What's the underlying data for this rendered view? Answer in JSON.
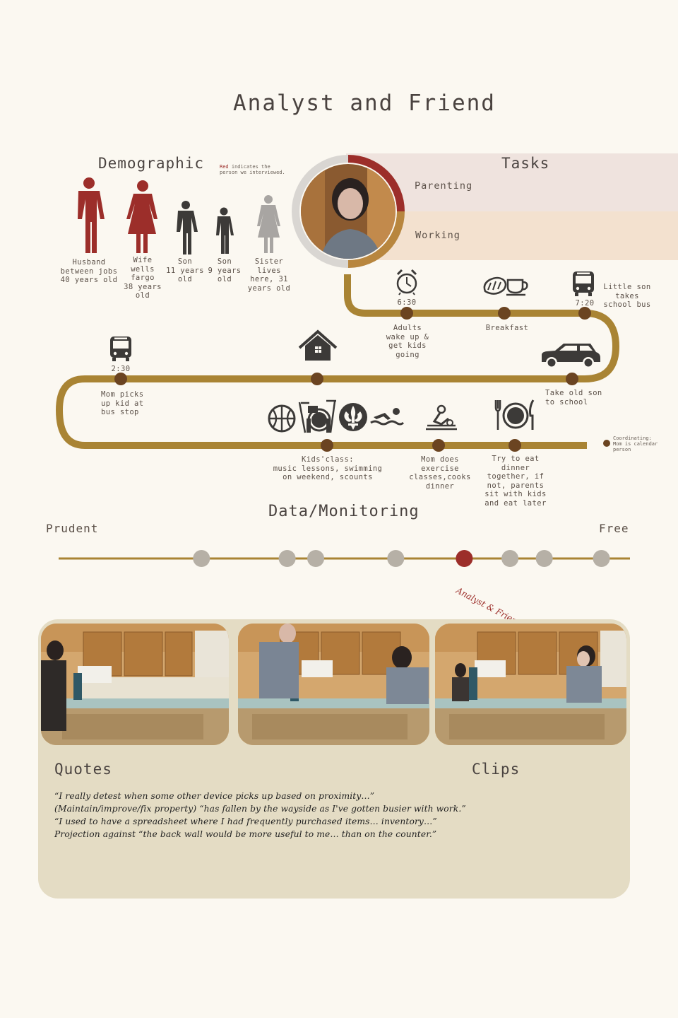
{
  "title": "Analyst and Friend",
  "demographic": {
    "heading": "Demographic",
    "legend_red": "Red",
    "legend_text_1": " indicates the",
    "legend_text_2": "person we interviewed.",
    "people": [
      {
        "lines": [
          "Husband",
          "between jobs",
          "40 years old"
        ],
        "color": "#9c2e2a"
      },
      {
        "lines": [
          "Wife",
          "wells",
          "fargo",
          "38 years",
          "old"
        ],
        "color": "#9c2e2a"
      },
      {
        "lines": [
          "Son",
          "11 years",
          "old"
        ],
        "color": "#3c3a38"
      },
      {
        "lines": [
          "Son",
          "9 years",
          "old"
        ],
        "color": "#3c3a38"
      },
      {
        "lines": [
          "Sister",
          "lives",
          "here, 31",
          "years old"
        ],
        "color": "#a8a5a2"
      }
    ]
  },
  "tasks": {
    "heading": "Tasks",
    "items": [
      "Parenting",
      "Working"
    ]
  },
  "timeline": {
    "events": [
      {
        "time": "6:30",
        "lines": [
          "Adults",
          "wake up &",
          "get kids",
          "going"
        ]
      },
      {
        "time": "",
        "lines": [
          "Breakfast"
        ]
      },
      {
        "time": "7:20",
        "lines": [
          "Little son",
          "takes",
          "school bus"
        ]
      },
      {
        "time": "",
        "lines": [
          "Take old son",
          "to school"
        ]
      },
      {
        "time": "2:30",
        "lines": [
          "Mom picks",
          "up kid at",
          "bus stop"
        ]
      },
      {
        "time": "",
        "lines": [
          "Kids'class:",
          "music lessons, swimming",
          "on weekend, scounts"
        ]
      },
      {
        "time": "",
        "lines": [
          "Mom does",
          "exercise",
          "classes,cooks",
          "dinner"
        ]
      },
      {
        "time": "",
        "lines": [
          "Try to eat",
          "dinner",
          "together, if",
          "not, parents",
          "sit with kids",
          "and eat later"
        ]
      }
    ],
    "legend_1": "Coordinating:",
    "legend_2": "Mom is calendar",
    "legend_3": "person",
    "colors": {
      "track": "#a98434",
      "dot": "#6b4421"
    }
  },
  "data_monitoring": {
    "heading": "Data/Monitoring",
    "left_label": "Prudent",
    "right_label": "Free",
    "positions": [
      0.25,
      0.4,
      0.45,
      0.59,
      0.71,
      0.79,
      0.85,
      0.95
    ],
    "highlight_index": 4,
    "highlight_label": "Analyst & Friend",
    "colors": {
      "line": "#a98434",
      "dot": "#b6b0a6",
      "highlight": "#9c2e2a"
    }
  },
  "quotes": {
    "heading": "Quotes",
    "clips_heading": "Clips",
    "lines": [
      "“I really detest when some other device picks up based on proximity…”",
      "(Maintain/improve/fix property) “has fallen by the wayside as I've gotten busier with work.”",
      "“I used to have a spreadsheet where I had frequently purchased items… inventory…”",
      "Projection against “the back wall would be more useful to me… than on the counter.”"
    ]
  },
  "icons": [
    "alarm-clock-icon",
    "bread-icon",
    "coffee-cup-icon",
    "bus-icon",
    "car-icon",
    "house-icon",
    "basketball-icon",
    "drum-icon",
    "fleur-de-lis-icon",
    "swimmer-icon",
    "exercise-icon",
    "plate-fork-knife-icon"
  ]
}
